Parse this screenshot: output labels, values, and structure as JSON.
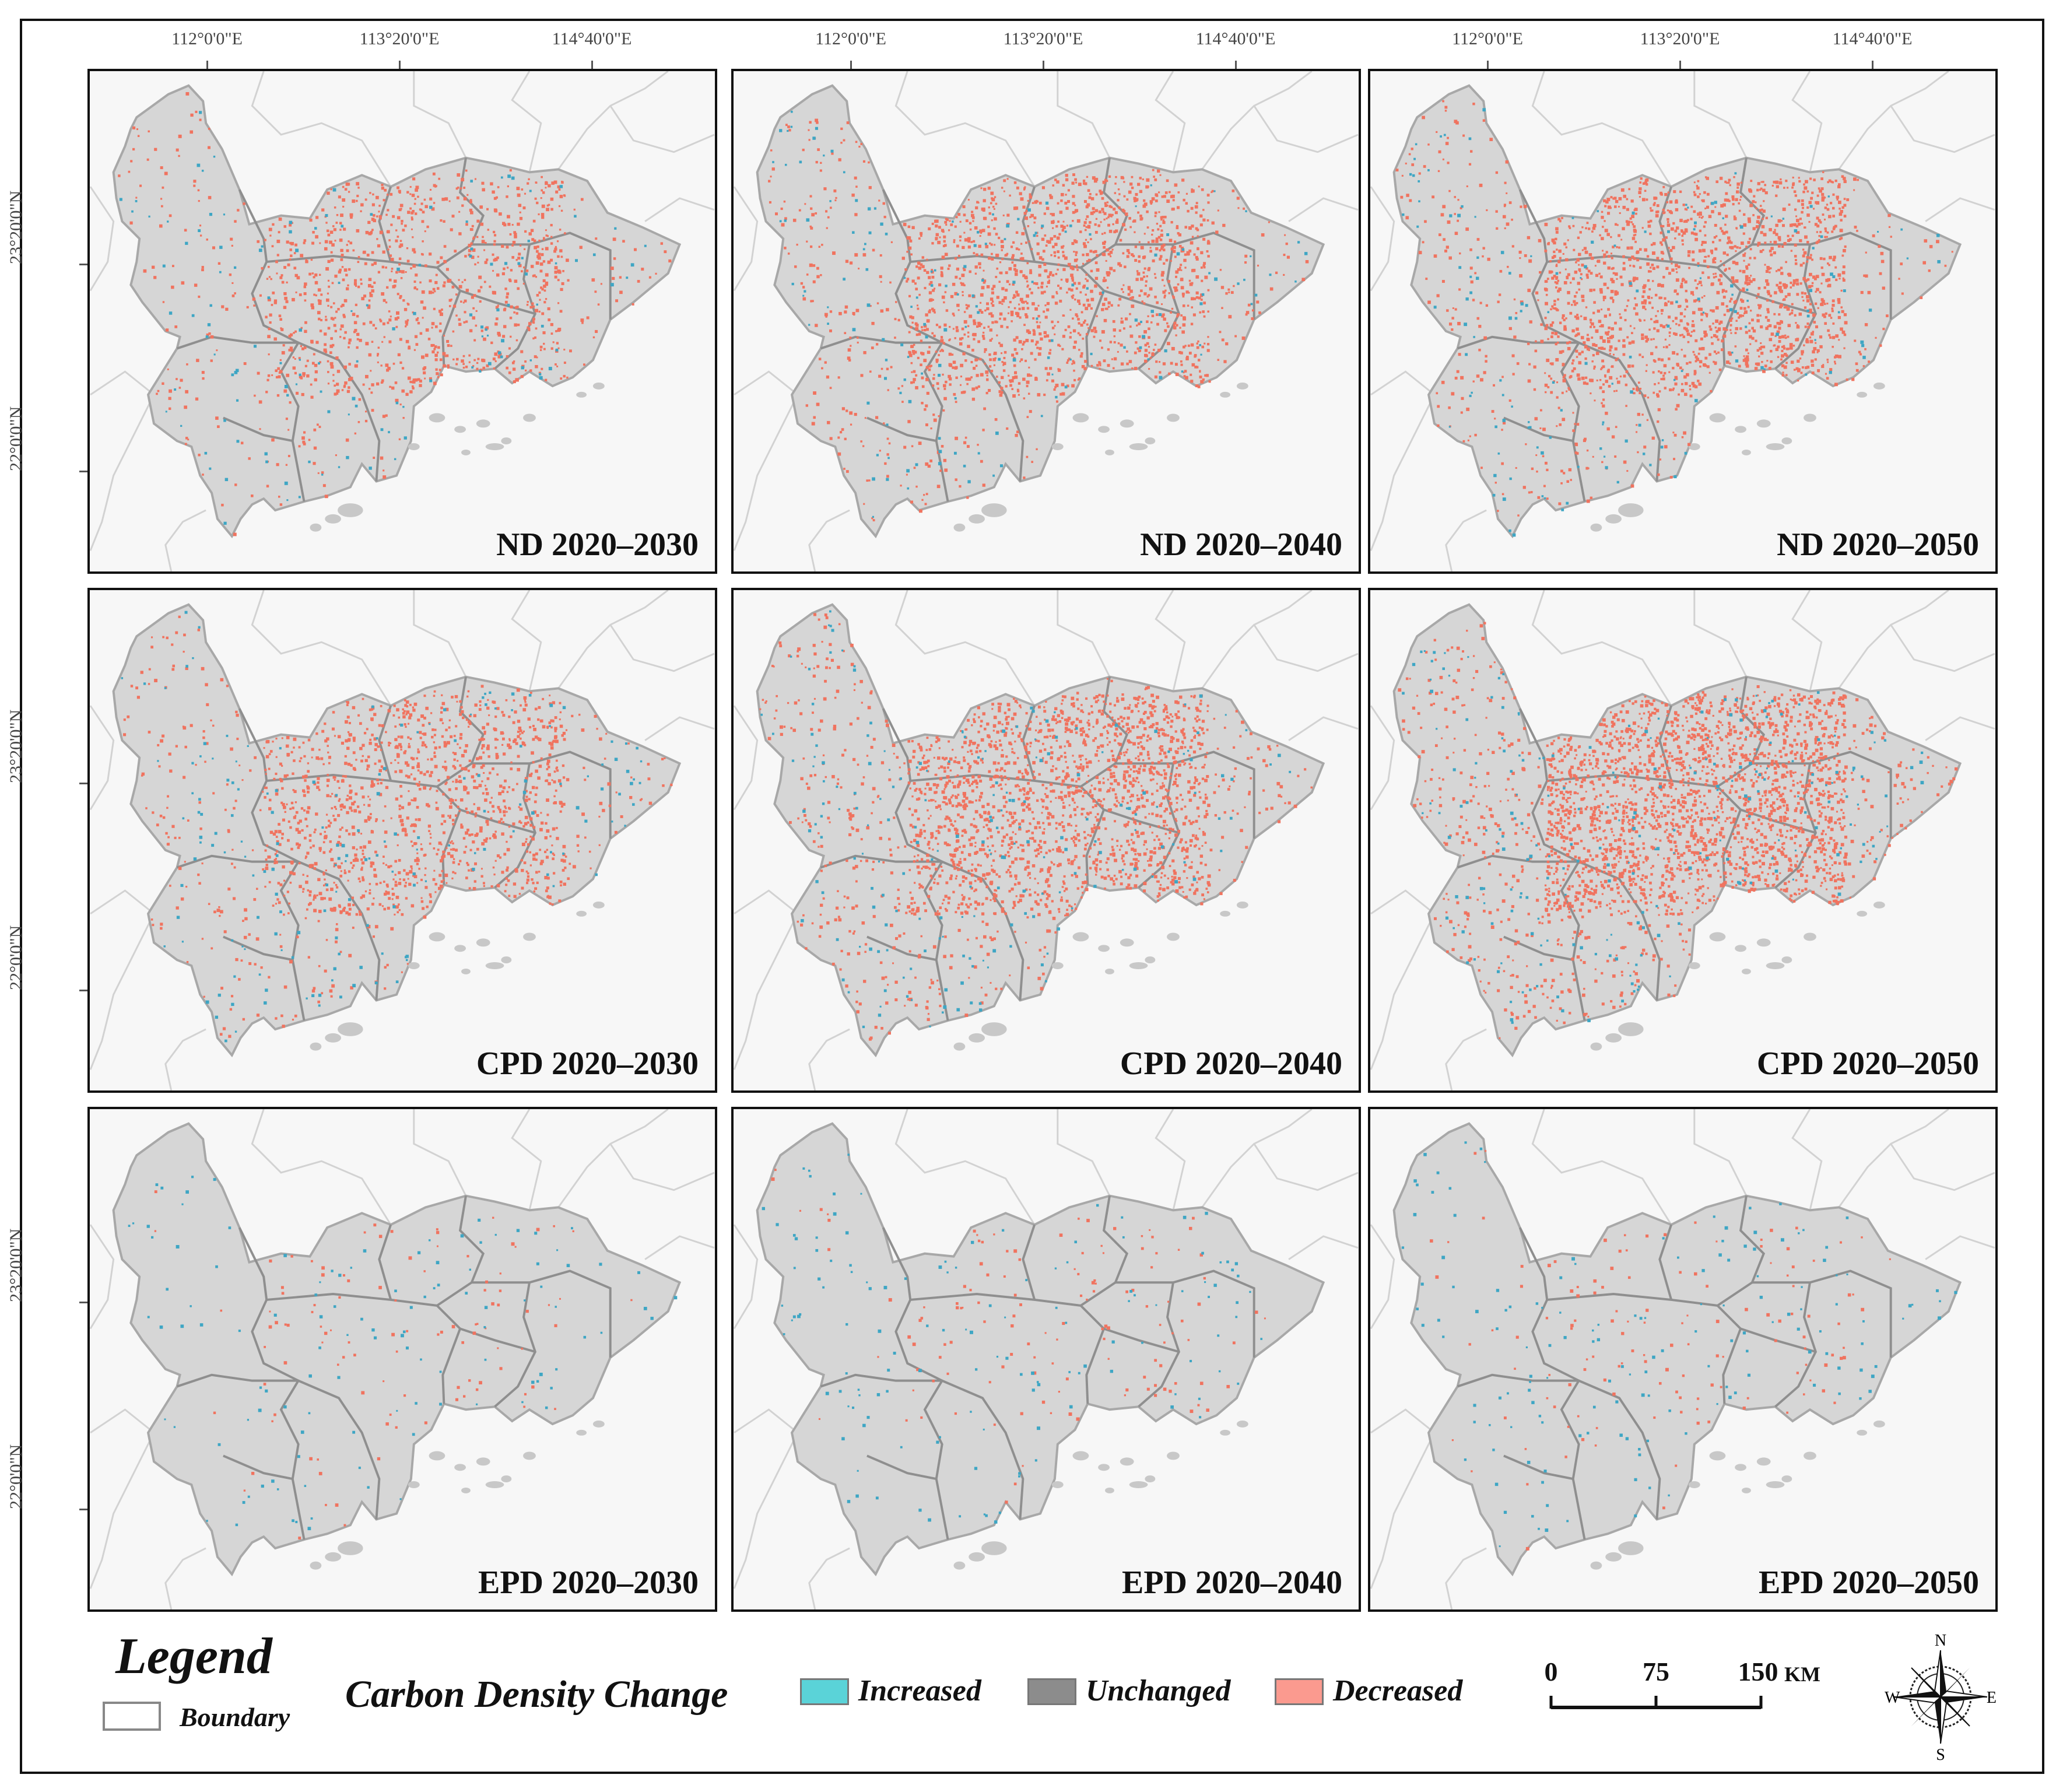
{
  "longitude_ticks": [
    "112°0'0\"E",
    "113°20'0\"E",
    "114°40'0\"E"
  ],
  "latitude_ticks": [
    "23°20'0\"N",
    "22°0'0\"N"
  ],
  "panels": [
    {
      "label": "ND 2020–2030",
      "scenario": "ND",
      "decreased_level": 0.45,
      "increased_level": 0.08
    },
    {
      "label": "ND 2020–2040",
      "scenario": "ND",
      "decreased_level": 0.65,
      "increased_level": 0.1
    },
    {
      "label": "ND 2020–2050",
      "scenario": "ND",
      "decreased_level": 0.7,
      "increased_level": 0.1
    },
    {
      "label": "CPD 2020–2030",
      "scenario": "CPD",
      "decreased_level": 0.55,
      "increased_level": 0.12
    },
    {
      "label": "CPD 2020–2040",
      "scenario": "CPD",
      "decreased_level": 0.8,
      "increased_level": 0.15
    },
    {
      "label": "CPD 2020–2050",
      "scenario": "CPD",
      "decreased_level": 1.0,
      "increased_level": 0.18
    },
    {
      "label": "EPD 2020–2030",
      "scenario": "EPD",
      "decreased_level": 0.04,
      "increased_level": 0.06
    },
    {
      "label": "EPD 2020–2040",
      "scenario": "EPD",
      "decreased_level": 0.05,
      "increased_level": 0.08
    },
    {
      "label": "EPD 2020–2050",
      "scenario": "EPD",
      "decreased_level": 0.05,
      "increased_level": 0.1
    }
  ],
  "legend": {
    "title": "Legend",
    "boundary_label": "Boundary",
    "carbon_title": "Carbon Density Change",
    "classes": [
      {
        "label": "Increased",
        "color": "#5ad3d8"
      },
      {
        "label": "Unchanged",
        "color": "#8c8c8c"
      },
      {
        "label": "Decreased",
        "color": "#fb9a8f"
      }
    ]
  },
  "scale_bar": {
    "ticks": [
      "0",
      "75",
      "150"
    ],
    "unit": "KM"
  },
  "compass": {
    "n": "N",
    "s": "S",
    "e": "E",
    "w": "W"
  },
  "colors": {
    "region_fill": "#d6d6d6",
    "region_outline": "#a8a8a8",
    "inner_boundary": "#8f8f8f",
    "surrounding_boundary": "#d2d2d2",
    "background": "#f7f7f7",
    "increased": "#3ea6c4",
    "decreased": "#f0735f"
  }
}
